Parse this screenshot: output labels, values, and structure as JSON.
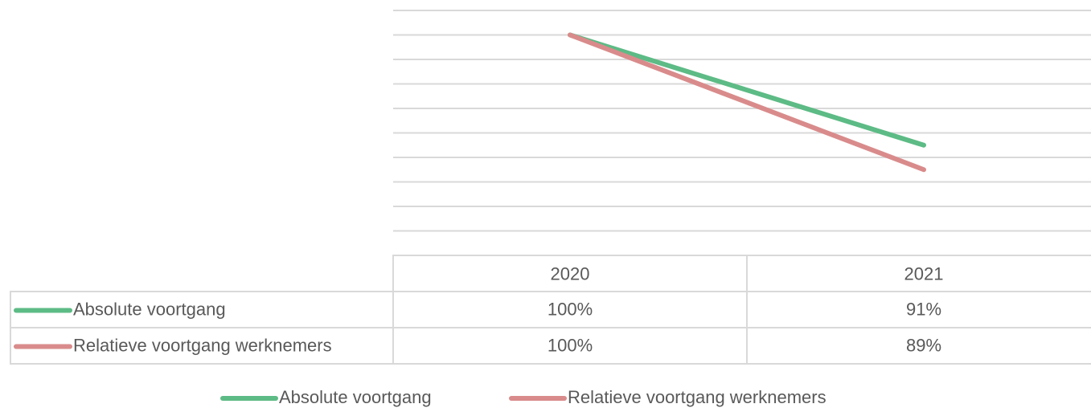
{
  "chart_data": {
    "type": "line",
    "categories": [
      "2020",
      "2021"
    ],
    "series": [
      {
        "name": "Absolute voortgang",
        "color": "#5dbb85",
        "values": [
          100,
          91
        ],
        "value_labels": [
          "100%",
          "91%"
        ]
      },
      {
        "name": "Relatieve voortgang werknemers",
        "color": "#d98b8b",
        "values": [
          100,
          89
        ],
        "value_labels": [
          "100%",
          "89%"
        ]
      }
    ],
    "ylim": [
      82,
      102
    ],
    "yticks": [
      82,
      84,
      86,
      88,
      90,
      92,
      94,
      96,
      98,
      100,
      102
    ],
    "grid": true,
    "data_table": true,
    "legend": "bottom"
  }
}
